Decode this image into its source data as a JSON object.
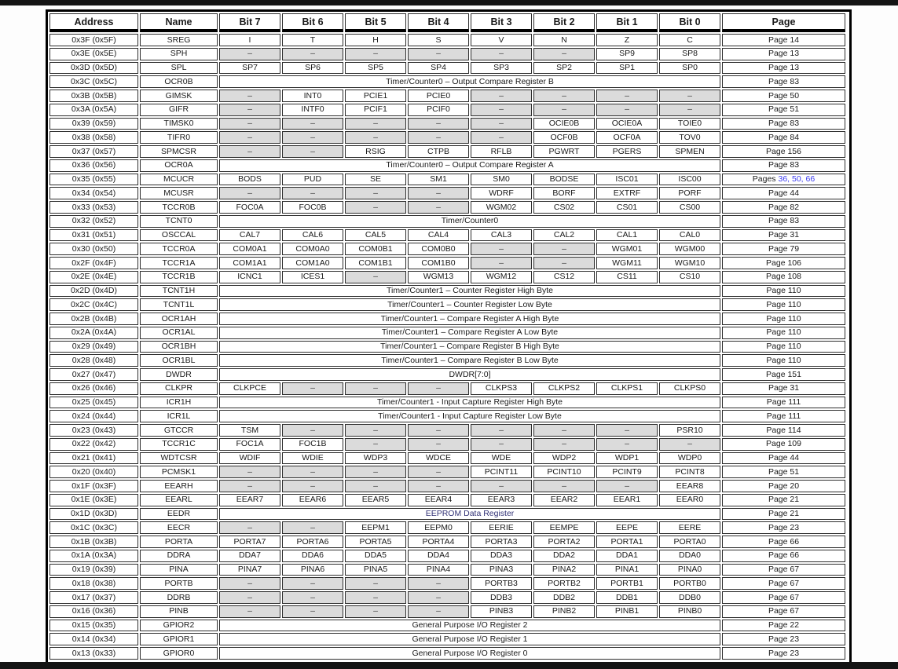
{
  "page": {
    "top_bar_color": "#141414",
    "bottom_bar_color": "#141414",
    "table_border_color": "#000000",
    "reserved_bg": "#dbdbdb",
    "link_color": "#3c3cf0",
    "eedr_span_color": "#333377"
  },
  "table": {
    "columns": [
      "Address",
      "Name",
      "Bit 7",
      "Bit 6",
      "Bit 5",
      "Bit 4",
      "Bit 3",
      "Bit 2",
      "Bit 1",
      "Bit 0",
      "Page"
    ],
    "rows": [
      {
        "address": "0x3F (0x5F)",
        "name": "SREG",
        "bits": [
          "I",
          "T",
          "H",
          "S",
          "V",
          "N",
          "Z",
          "C"
        ],
        "page": "Page 14"
      },
      {
        "address": "0x3E (0x5E)",
        "name": "SPH",
        "bits": [
          "–",
          "–",
          "–",
          "–",
          "–",
          "–",
          "SP9",
          "SP8"
        ],
        "page": "Page 13"
      },
      {
        "address": "0x3D (0x5D)",
        "name": "SPL",
        "bits": [
          "SP7",
          "SP6",
          "SP5",
          "SP4",
          "SP3",
          "SP2",
          "SP1",
          "SP0"
        ],
        "page": "Page 13"
      },
      {
        "address": "0x3C (0x5C)",
        "name": "OCR0B",
        "span": "Timer/Counter0 – Output Compare Register B",
        "page": "Page 83"
      },
      {
        "address": "0x3B (0x5B)",
        "name": "GIMSK",
        "bits": [
          "–",
          "INT0",
          "PCIE1",
          "PCIE0",
          "–",
          "–",
          "–",
          "–"
        ],
        "page": "Page 50"
      },
      {
        "address": "0x3A (0x5A)",
        "name": "GIFR",
        "bits": [
          "–",
          "INTF0",
          "PCIF1",
          "PCIF0",
          "–",
          "–",
          "–",
          "–"
        ],
        "page": "Page 51"
      },
      {
        "address": "0x39 (0x59)",
        "name": "TIMSK0",
        "bits": [
          "–",
          "–",
          "–",
          "–",
          "–",
          "OCIE0B",
          "OCIE0A",
          "TOIE0"
        ],
        "page": "Page 83"
      },
      {
        "address": "0x38 (0x58)",
        "name": "TIFR0",
        "bits": [
          "–",
          "–",
          "–",
          "–",
          "–",
          "OCF0B",
          "OCF0A",
          "TOV0"
        ],
        "page": "Page 84"
      },
      {
        "address": "0x37 (0x57)",
        "name": "SPMCSR",
        "bits": [
          "–",
          "–",
          "RSIG",
          "CTPB",
          "RFLB",
          "PGWRT",
          "PGERS",
          "SPMEN"
        ],
        "page": "Page 156"
      },
      {
        "address": "0x36 (0x56)",
        "name": "OCR0A",
        "span": "Timer/Counter0 – Output Compare Register A",
        "page": "Page 83"
      },
      {
        "address": "0x35 (0x55)",
        "name": "MCUCR",
        "bits": [
          "BODS",
          "PUD",
          "SE",
          "SM1",
          "SM0",
          "BODSE",
          "ISC01",
          "ISC00"
        ],
        "page": "Pages ",
        "page_links": "36, 50, 66"
      },
      {
        "address": "0x34 (0x54)",
        "name": "MCUSR",
        "bits": [
          "–",
          "–",
          "–",
          "–",
          "WDRF",
          "BORF",
          "EXTRF",
          "PORF"
        ],
        "page": "Page 44"
      },
      {
        "address": "0x33 (0x53)",
        "name": "TCCR0B",
        "bits": [
          "FOC0A",
          "FOC0B",
          "–",
          "–",
          "WGM02",
          "CS02",
          "CS01",
          "CS00"
        ],
        "page": "Page 82"
      },
      {
        "address": "0x32 (0x52)",
        "name": "TCNT0",
        "span": "Timer/Counter0",
        "page": "Page 83"
      },
      {
        "address": "0x31 (0x51)",
        "name": "OSCCAL",
        "bits": [
          "CAL7",
          "CAL6",
          "CAL5",
          "CAL4",
          "CAL3",
          "CAL2",
          "CAL1",
          "CAL0"
        ],
        "page": "Page 31"
      },
      {
        "address": "0x30 (0x50)",
        "name": "TCCR0A",
        "bits": [
          "COM0A1",
          "COM0A0",
          "COM0B1",
          "COM0B0",
          "–",
          "–",
          "WGM01",
          "WGM00"
        ],
        "page": "Page 79"
      },
      {
        "address": "0x2F (0x4F)",
        "name": "TCCR1A",
        "bits": [
          "COM1A1",
          "COM1A0",
          "COM1B1",
          "COM1B0",
          "–",
          "–",
          "WGM11",
          "WGM10"
        ],
        "page": "Page 106"
      },
      {
        "address": "0x2E (0x4E)",
        "name": "TCCR1B",
        "bits": [
          "ICNC1",
          "ICES1",
          "–",
          "WGM13",
          "WGM12",
          "CS12",
          "CS11",
          "CS10"
        ],
        "page": "Page 108"
      },
      {
        "address": "0x2D (0x4D)",
        "name": "TCNT1H",
        "span": "Timer/Counter1 – Counter Register High Byte",
        "page": "Page 110"
      },
      {
        "address": "0x2C (0x4C)",
        "name": "TCNT1L",
        "span": "Timer/Counter1 – Counter Register Low Byte",
        "page": "Page 110"
      },
      {
        "address": "0x2B (0x4B)",
        "name": "OCR1AH",
        "span": "Timer/Counter1 – Compare Register A High Byte",
        "page": "Page 110"
      },
      {
        "address": "0x2A (0x4A)",
        "name": "OCR1AL",
        "span": "Timer/Counter1 – Compare Register A Low Byte",
        "page": "Page 110"
      },
      {
        "address": "0x29 (0x49)",
        "name": "OCR1BH",
        "span": "Timer/Counter1 – Compare Register B High Byte",
        "page": "Page 110"
      },
      {
        "address": "0x28 (0x48)",
        "name": "OCR1BL",
        "span": "Timer/Counter1 – Compare Register B Low Byte",
        "page": "Page 110"
      },
      {
        "address": "0x27 (0x47)",
        "name": "DWDR",
        "span": "DWDR[7:0]",
        "page": "Page 151"
      },
      {
        "address": "0x26 (0x46)",
        "name": "CLKPR",
        "bits": [
          "CLKPCE",
          "–",
          "–",
          "–",
          "CLKPS3",
          "CLKPS2",
          "CLKPS1",
          "CLKPS0"
        ],
        "page": "Page 31"
      },
      {
        "address": "0x25 (0x45)",
        "name": "ICR1H",
        "span": "Timer/Counter1 - Input Capture Register High Byte",
        "page": "Page 111"
      },
      {
        "address": "0x24 (0x44)",
        "name": "ICR1L",
        "span": "Timer/Counter1 - Input Capture Register Low Byte",
        "page": "Page 111"
      },
      {
        "address": "0x23 (0x43)",
        "name": "GTCCR",
        "bits": [
          "TSM",
          "–",
          "–",
          "–",
          "–",
          "–",
          "–",
          "PSR10"
        ],
        "page": "Page 114"
      },
      {
        "address": "0x22 (0x42)",
        "name": "TCCR1C",
        "bits": [
          "FOC1A",
          "FOC1B",
          "–",
          "–",
          "–",
          "–",
          "–",
          "–"
        ],
        "page": "Page 109"
      },
      {
        "address": "0x21 (0x41)",
        "name": "WDTCSR",
        "bits": [
          "WDIF",
          "WDIE",
          "WDP3",
          "WDCE",
          "WDE",
          "WDP2",
          "WDP1",
          "WDP0"
        ],
        "page": "Page 44"
      },
      {
        "address": "0x20 (0x40)",
        "name": "PCMSK1",
        "bits": [
          "–",
          "–",
          "–",
          "–",
          "PCINT11",
          "PCINT10",
          "PCINT9",
          "PCINT8"
        ],
        "page": "Page 51"
      },
      {
        "address": "0x1F (0x3F)",
        "name": "EEARH",
        "bits": [
          "–",
          "–",
          "–",
          "–",
          "–",
          "–",
          "–",
          "EEAR8"
        ],
        "page": "Page 20"
      },
      {
        "address": "0x1E (0x3E)",
        "name": "EEARL",
        "bits": [
          "EEAR7",
          "EEAR6",
          "EEAR5",
          "EEAR4",
          "EEAR3",
          "EEAR2",
          "EEAR1",
          "EEAR0"
        ],
        "page": "Page 21"
      },
      {
        "address": "0x1D (0x3D)",
        "name": "EEDR",
        "span": "EEPROM Data Register",
        "span_navy": true,
        "page": "Page 21"
      },
      {
        "address": "0x1C (0x3C)",
        "name": "EECR",
        "bits": [
          "–",
          "–",
          "EEPM1",
          "EEPM0",
          "EERIE",
          "EEMPE",
          "EEPE",
          "EERE"
        ],
        "page": "Page 23"
      },
      {
        "address": "0x1B (0x3B)",
        "name": "PORTA",
        "bits": [
          "PORTA7",
          "PORTA6",
          "PORTA5",
          "PORTA4",
          "PORTA3",
          "PORTA2",
          "PORTA1",
          "PORTA0"
        ],
        "page": "Page 66"
      },
      {
        "address": "0x1A (0x3A)",
        "name": "DDRA",
        "bits": [
          "DDA7",
          "DDA6",
          "DDA5",
          "DDA4",
          "DDA3",
          "DDA2",
          "DDA1",
          "DDA0"
        ],
        "page": "Page 66"
      },
      {
        "address": "0x19 (0x39)",
        "name": "PINA",
        "bits": [
          "PINA7",
          "PINA6",
          "PINA5",
          "PINA4",
          "PINA3",
          "PINA2",
          "PINA1",
          "PINA0"
        ],
        "page": "Page 67"
      },
      {
        "address": "0x18 (0x38)",
        "name": "PORTB",
        "bits": [
          "–",
          "–",
          "–",
          "–",
          "PORTB3",
          "PORTB2",
          "PORTB1",
          "PORTB0"
        ],
        "page": "Page 67"
      },
      {
        "address": "0x17 (0x37)",
        "name": "DDRB",
        "bits": [
          "–",
          "–",
          "–",
          "–",
          "DDB3",
          "DDB2",
          "DDB1",
          "DDB0"
        ],
        "page": "Page 67"
      },
      {
        "address": "0x16 (0x36)",
        "name": "PINB",
        "bits": [
          "–",
          "–",
          "–",
          "–",
          "PINB3",
          "PINB2",
          "PINB1",
          "PINB0"
        ],
        "page": "Page 67"
      },
      {
        "address": "0x15 (0x35)",
        "name": "GPIOR2",
        "span": "General Purpose I/O Register 2",
        "page": "Page 22"
      },
      {
        "address": "0x14 (0x34)",
        "name": "GPIOR1",
        "span": "General Purpose I/O Register 1",
        "page": "Page 23"
      },
      {
        "address": "0x13 (0x33)",
        "name": "GPIOR0",
        "span": "General Purpose I/O Register 0",
        "page": "Page 23"
      }
    ]
  }
}
